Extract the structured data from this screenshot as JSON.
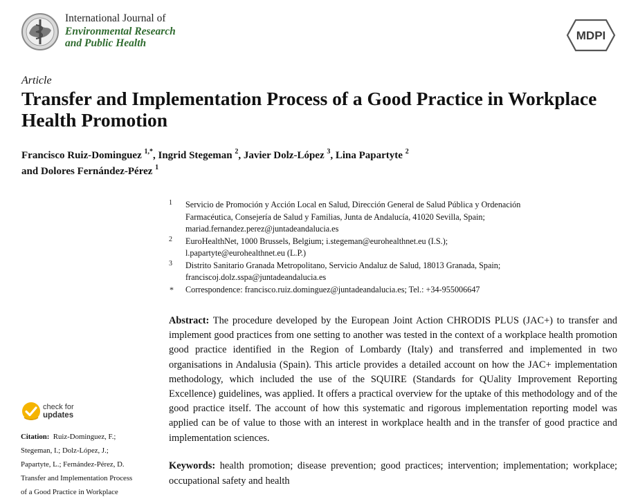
{
  "header": {
    "journal_line1": "International Journal of",
    "journal_line2": "Environmental Research",
    "journal_line3": "and Public Health",
    "publisher": "MDPI",
    "accent_green": "#2f6b2f",
    "logo_icon": "journal-emblem-icon"
  },
  "article": {
    "type": "Article",
    "title": "Transfer and Implementation Process of a Good Practice in Workplace Health Promotion",
    "authors": [
      {
        "name": "Francisco Ruiz-Dominguez",
        "sup": "1,*"
      },
      {
        "name": "Ingrid Stegeman",
        "sup": "2"
      },
      {
        "name": "Javier Dolz-López",
        "sup": "3"
      },
      {
        "name": "Lina Papartyte",
        "sup": "2"
      },
      {
        "name": "Dolores Fernández-Pérez",
        "sup": "1"
      }
    ],
    "separator_comma": ",",
    "separator_and": "and"
  },
  "affiliations": [
    {
      "mark": "1",
      "lines": [
        "Servicio de Promoción y Acción Local en Salud, Dirección General de Salud Pública y Ordenación",
        "Farmacéutica, Consejería de Salud y Familias, Junta de Andalucía, 41020 Sevilla, Spain;",
        "mariad.fernandez.perez@juntadeandalucia.es"
      ]
    },
    {
      "mark": "2",
      "lines": [
        "EuroHealthNet, 1000 Brussels, Belgium; i.stegeman@eurohealthnet.eu (I.S.);",
        "l.papartyte@eurohealthnet.eu (L.P.)"
      ]
    },
    {
      "mark": "3",
      "lines": [
        "Distrito Sanitario Granada Metropolitano, Servicio Andaluz de Salud, 18013 Granada, Spain;",
        "franciscoj.dolz.sspa@juntadeandalucia.es"
      ]
    },
    {
      "mark": "*",
      "lines": [
        "Correspondence: francisco.ruiz.dominguez@juntadeandalucia.es; Tel.: +34-955006647"
      ]
    }
  ],
  "abstract": {
    "label": "Abstract:",
    "text": "The procedure developed by the European Joint Action CHRODIS PLUS (JAC+) to transfer and implement good practices from one setting to another was tested in the context of a workplace health promotion good practice identified in the Region of Lombardy (Italy) and transferred and implemented in two organisations in Andalusia (Spain). This article provides a detailed account on how the JAC+ implementation methodology, which included the use of the SQUIRE (Standards for QUality Improvement Reporting Excellence) guidelines, was applied. It offers a practical overview for the uptake of this methodology and of the good practice itself. The account of how this systematic and rigorous implementation reporting model was applied can be of value to those with an interest in workplace health and in the transfer of good practice and implementation sciences."
  },
  "keywords": {
    "label": "Keywords:",
    "text": "health promotion; disease prevention; good practices; intervention; implementation; workplace; occupational safety and health"
  },
  "updates": {
    "line1": "check for",
    "line2": "updates",
    "icon": "check-updates-icon",
    "badge_color": "#f5b400"
  },
  "citation": {
    "label": "Citation:",
    "lines": [
      "Ruiz-Dominguez, F.;",
      "Stegeman, I.; Dolz-López, J.;",
      "Papartyte, L.; Fernández-Pérez, D.",
      "Transfer and Implementation Process",
      "of a Good Practice in Workplace"
    ]
  }
}
